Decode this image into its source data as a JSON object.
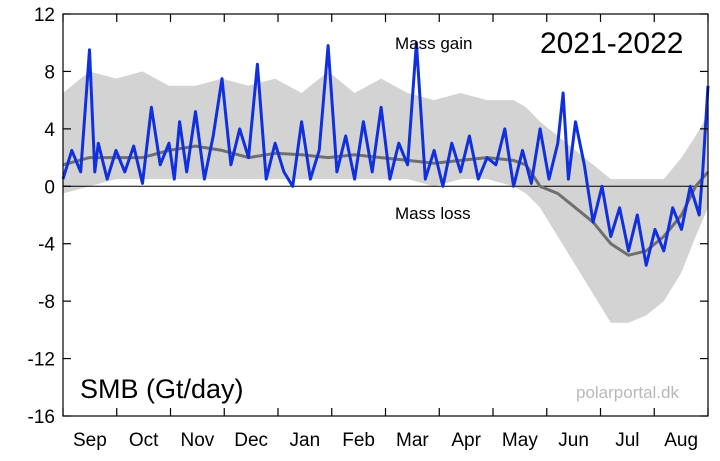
{
  "chart_data": {
    "type": "line",
    "title": "2021-2022",
    "ylabel": "SMB (Gt/day)",
    "xlabel": "",
    "credit": "polarportal.dk",
    "annotations": {
      "gain": "Mass gain",
      "loss": "Mass loss"
    },
    "ylim": [
      -16,
      12
    ],
    "yticks": [
      12,
      8,
      4,
      0,
      -4,
      -8,
      -12,
      -16
    ],
    "ytick_labels": [
      "12",
      "8",
      "4",
      "0",
      "-4",
      "-8",
      "-12",
      "-16"
    ],
    "months": [
      "Sep",
      "Oct",
      "Nov",
      "Dec",
      "Jan",
      "Feb",
      "Mar",
      "Apr",
      "May",
      "Jun",
      "Jul",
      "Aug"
    ],
    "x_unit": "day index from 1 September 2021",
    "xlim": [
      0,
      365
    ],
    "grid": false,
    "series": [
      {
        "role": "daily-smb",
        "color": "#1030e0",
        "x": [
          0,
          5,
          10,
          15,
          18,
          20,
          25,
          30,
          35,
          40,
          45,
          50,
          55,
          60,
          63,
          66,
          70,
          75,
          80,
          85,
          90,
          95,
          100,
          105,
          110,
          115,
          120,
          125,
          130,
          135,
          140,
          145,
          150,
          155,
          160,
          165,
          170,
          175,
          180,
          185,
          190,
          195,
          200,
          205,
          210,
          215,
          220,
          225,
          230,
          235,
          240,
          245,
          250,
          255,
          260,
          265,
          270,
          275,
          280,
          283,
          286,
          290,
          295,
          300,
          305,
          310,
          315,
          320,
          325,
          330,
          335,
          340,
          345,
          350,
          355,
          360,
          362,
          365
        ],
        "y": [
          0.5,
          2.5,
          1.0,
          9.5,
          1.0,
          3.0,
          0.5,
          2.5,
          1.0,
          2.8,
          0.2,
          5.5,
          1.5,
          3.0,
          0.5,
          4.5,
          1.0,
          5.2,
          0.5,
          3.5,
          7.5,
          1.5,
          4.0,
          2.0,
          8.5,
          0.5,
          3.0,
          1.0,
          0.0,
          4.5,
          0.5,
          2.5,
          9.8,
          1.0,
          3.5,
          0.5,
          4.5,
          1.0,
          5.5,
          0.5,
          3.0,
          1.5,
          10.0,
          0.5,
          2.5,
          0.0,
          3.0,
          1.0,
          3.5,
          0.5,
          2.0,
          1.5,
          4.0,
          0.0,
          2.5,
          0.2,
          4.0,
          0.5,
          3.0,
          6.5,
          0.5,
          4.5,
          1.5,
          -2.5,
          0.0,
          -3.5,
          -1.5,
          -4.5,
          -2.0,
          -5.5,
          -3.0,
          -4.5,
          -1.5,
          -3.0,
          0.0,
          -2.0,
          1.0,
          7.0
        ]
      },
      {
        "role": "mean-1981-2010",
        "color": "#6f6f6f",
        "x": [
          0,
          15,
          30,
          45,
          60,
          75,
          90,
          105,
          120,
          135,
          150,
          165,
          180,
          195,
          210,
          225,
          240,
          255,
          262,
          270,
          280,
          290,
          300,
          310,
          320,
          330,
          340,
          350,
          358,
          365
        ],
        "y": [
          1.5,
          2.0,
          2.0,
          2.0,
          2.5,
          2.8,
          2.5,
          2.0,
          2.3,
          2.2,
          2.0,
          2.2,
          2.0,
          1.8,
          1.6,
          1.8,
          2.0,
          1.8,
          1.5,
          0.0,
          -0.5,
          -1.5,
          -2.5,
          -4.0,
          -4.8,
          -4.5,
          -3.5,
          -2.0,
          0.0,
          1.0
        ]
      }
    ],
    "band": {
      "role": "range",
      "color": "#d3d3d3",
      "x": [
        0,
        15,
        30,
        45,
        60,
        75,
        90,
        105,
        120,
        135,
        150,
        165,
        180,
        195,
        210,
        225,
        240,
        255,
        262,
        270,
        280,
        290,
        300,
        310,
        320,
        330,
        340,
        350,
        358,
        365
      ],
      "upper": [
        6.5,
        8.0,
        7.5,
        8.0,
        7.0,
        7.0,
        7.5,
        7.0,
        7.5,
        6.5,
        8.0,
        6.5,
        7.5,
        6.5,
        6.0,
        6.5,
        6.0,
        6.0,
        5.5,
        4.5,
        3.5,
        2.5,
        1.5,
        0.5,
        0.5,
        0.5,
        0.5,
        2.0,
        3.5,
        5.0
      ],
      "lower": [
        -0.5,
        0.0,
        0.5,
        0.5,
        0.5,
        0.5,
        0.5,
        0.5,
        0.5,
        0.5,
        0.5,
        0.5,
        0.5,
        0.5,
        0.0,
        0.5,
        0.5,
        0.0,
        -0.5,
        -1.5,
        -3.5,
        -5.5,
        -7.5,
        -9.5,
        -9.5,
        -9.0,
        -8.0,
        -6.0,
        -3.5,
        -1.5
      ]
    }
  }
}
